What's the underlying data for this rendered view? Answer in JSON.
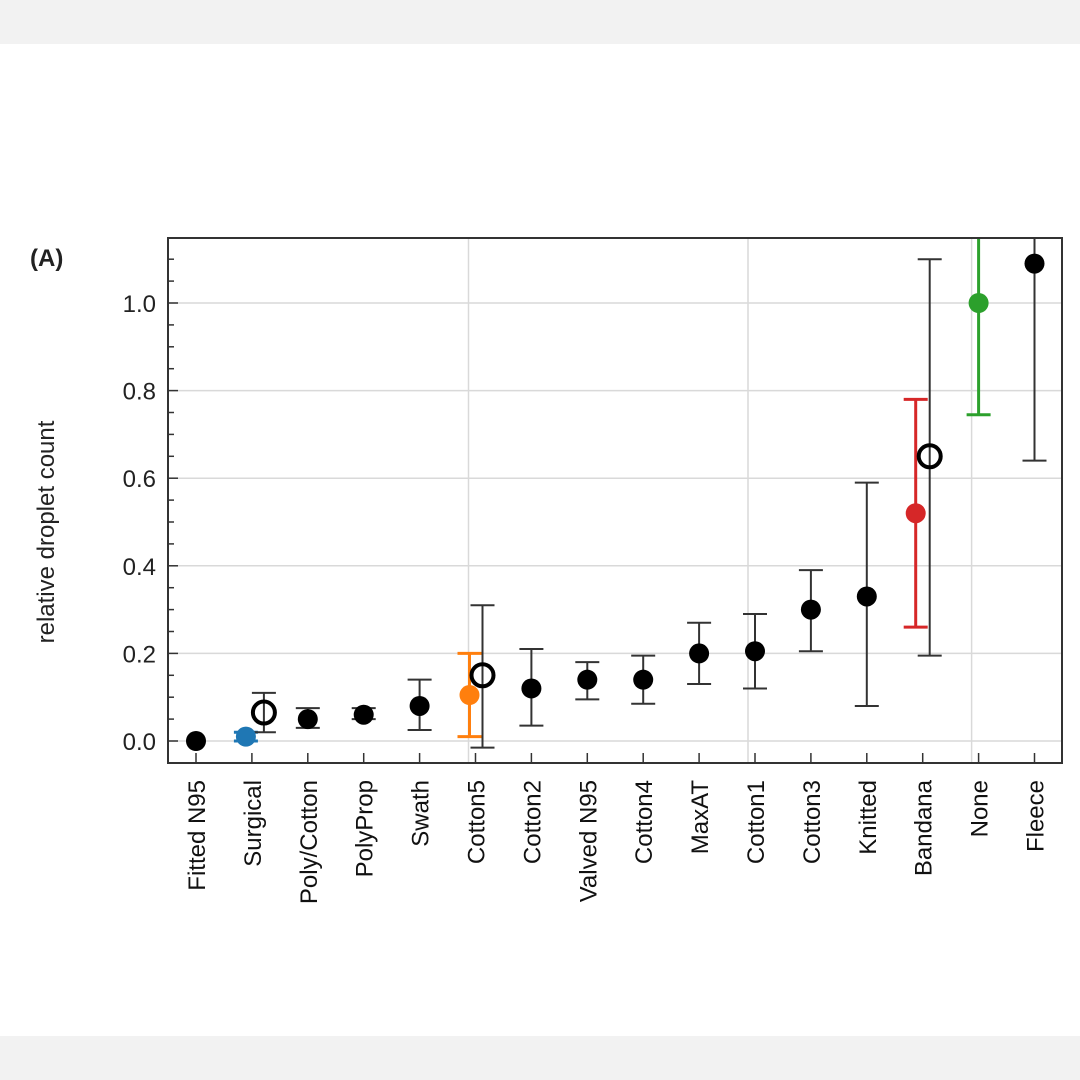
{
  "chart_data": {
    "type": "scatter",
    "panel_label": "(A)",
    "title": "",
    "xlabel": "",
    "ylabel": "relative droplet count",
    "ylim": [
      -0.05,
      1.15
    ],
    "yticks": [
      "0.0",
      "0.2",
      "0.4",
      "0.6",
      "0.8",
      "1.0"
    ],
    "ytick_values": [
      0.0,
      0.2,
      0.4,
      0.6,
      0.8,
      1.0
    ],
    "grid": true,
    "categories": [
      "Fitted N95",
      "Surgical",
      "Poly/Cotton",
      "PolyProp",
      "Swath",
      "Cotton5",
      "Cotton2",
      "Valved N95",
      "Cotton4",
      "MaxAT",
      "Cotton1",
      "Cotton3",
      "Knitted",
      "Bandana",
      "None",
      "Fleece"
    ],
    "series": [
      {
        "name": "filled",
        "points": [
          {
            "category": "Fitted N95",
            "value": 0.0,
            "err_low": 0.0,
            "err_high": 0.0,
            "color": "#000000"
          },
          {
            "category": "Surgical",
            "value": 0.01,
            "err_low": 0.0,
            "err_high": 0.02,
            "color": "#1f77b4"
          },
          {
            "category": "Poly/Cotton",
            "value": 0.05,
            "err_low": 0.03,
            "err_high": 0.075,
            "color": "#000000"
          },
          {
            "category": "PolyProp",
            "value": 0.06,
            "err_low": 0.05,
            "err_high": 0.075,
            "color": "#000000"
          },
          {
            "category": "Swath",
            "value": 0.08,
            "err_low": 0.025,
            "err_high": 0.14,
            "color": "#000000"
          },
          {
            "category": "Cotton5",
            "value": 0.105,
            "err_low": 0.01,
            "err_high": 0.2,
            "color": "#ff7f0e"
          },
          {
            "category": "Cotton2",
            "value": 0.12,
            "err_low": 0.035,
            "err_high": 0.21,
            "color": "#000000"
          },
          {
            "category": "Valved N95",
            "value": 0.14,
            "err_low": 0.095,
            "err_high": 0.18,
            "color": "#000000"
          },
          {
            "category": "Cotton4",
            "value": 0.14,
            "err_low": 0.085,
            "err_high": 0.195,
            "color": "#000000"
          },
          {
            "category": "MaxAT",
            "value": 0.2,
            "err_low": 0.13,
            "err_high": 0.27,
            "color": "#000000"
          },
          {
            "category": "Cotton1",
            "value": 0.205,
            "err_low": 0.12,
            "err_high": 0.29,
            "color": "#000000"
          },
          {
            "category": "Cotton3",
            "value": 0.3,
            "err_low": 0.205,
            "err_high": 0.39,
            "color": "#000000"
          },
          {
            "category": "Knitted",
            "value": 0.33,
            "err_low": 0.08,
            "err_high": 0.59,
            "color": "#000000"
          },
          {
            "category": "Bandana",
            "value": 0.52,
            "err_low": 0.26,
            "err_high": 0.78,
            "color": "#d62728"
          },
          {
            "category": "None",
            "value": 1.0,
            "err_low": 0.745,
            "err_high": 1.2,
            "color": "#2ca02c"
          },
          {
            "category": "Fleece",
            "value": 1.09,
            "err_low": 0.64,
            "err_high": 1.2,
            "color": "#000000"
          }
        ]
      },
      {
        "name": "open",
        "points": [
          {
            "category": "Surgical",
            "value": 0.065,
            "err_low": 0.02,
            "err_high": 0.11,
            "color": "#000000"
          },
          {
            "category": "Cotton5",
            "value": 0.15,
            "err_low": -0.015,
            "err_high": 0.31,
            "color": "#000000"
          },
          {
            "category": "Bandana",
            "value": 0.65,
            "err_low": 0.195,
            "err_high": 1.1,
            "color": "#000000"
          }
        ]
      }
    ]
  }
}
